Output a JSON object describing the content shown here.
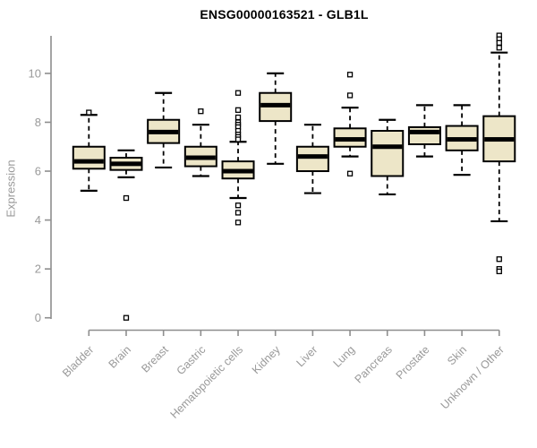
{
  "title": "ENSG00000163521 - GLB1L",
  "colors": {
    "background": "#ffffff",
    "box_fill": "#ede6c8",
    "box_border": "#000000",
    "median": "#000000",
    "whisker": "#000000",
    "outlier_stroke": "#000000",
    "outlier_fill": "#ffffff",
    "axis_line": "#8e8e8e",
    "tick_label": "#999999",
    "title_color": "#000000"
  },
  "chart_data": {
    "type": "boxplot",
    "title": "ENSG00000163521 - GLB1L",
    "ylabel": "Expression",
    "xlabel": "",
    "ylim": [
      0,
      11.6
    ],
    "yticks": [
      0,
      2,
      4,
      6,
      8,
      10
    ],
    "grid": false,
    "legend": "none",
    "categories": [
      "Bladder",
      "Brain",
      "Breast",
      "Gastric",
      "Hematopoietic cells",
      "Kidney",
      "Liver",
      "Lung",
      "Pancreas",
      "Prostate",
      "Skin",
      "Unknown / Other"
    ],
    "series": [
      {
        "label": "Bladder",
        "whisker_low": 5.2,
        "q1": 6.1,
        "median": 6.4,
        "q3": 7.0,
        "whisker_high": 8.3,
        "outliers": [
          8.4
        ]
      },
      {
        "label": "Brain",
        "whisker_low": 5.75,
        "q1": 6.05,
        "median": 6.3,
        "q3": 6.55,
        "whisker_high": 6.85,
        "outliers": [
          4.9,
          0.0
        ]
      },
      {
        "label": "Breast",
        "whisker_low": 6.15,
        "q1": 7.15,
        "median": 7.6,
        "q3": 8.1,
        "whisker_high": 9.2,
        "outliers": []
      },
      {
        "label": "Gastric",
        "whisker_low": 5.8,
        "q1": 6.2,
        "median": 6.55,
        "q3": 7.0,
        "whisker_high": 7.9,
        "outliers": [
          8.45
        ]
      },
      {
        "label": "Hematopoietic cells",
        "whisker_low": 4.9,
        "q1": 5.7,
        "median": 6.0,
        "q3": 6.4,
        "whisker_high": 7.2,
        "outliers": [
          9.2,
          8.5,
          8.2,
          8.0,
          7.9,
          7.8,
          7.65,
          7.5,
          7.4,
          7.3,
          4.6,
          4.3,
          3.9
        ]
      },
      {
        "label": "Kidney",
        "whisker_low": 6.3,
        "q1": 8.05,
        "median": 8.7,
        "q3": 9.2,
        "whisker_high": 10.0,
        "outliers": []
      },
      {
        "label": "Liver",
        "whisker_low": 5.1,
        "q1": 6.0,
        "median": 6.6,
        "q3": 7.0,
        "whisker_high": 7.9,
        "outliers": []
      },
      {
        "label": "Lung",
        "whisker_low": 6.6,
        "q1": 7.0,
        "median": 7.3,
        "q3": 7.75,
        "whisker_high": 8.6,
        "outliers": [
          9.95,
          9.1,
          5.9
        ]
      },
      {
        "label": "Pancreas",
        "whisker_low": 5.05,
        "q1": 5.8,
        "median": 7.0,
        "q3": 7.65,
        "whisker_high": 8.1,
        "outliers": []
      },
      {
        "label": "Prostate",
        "whisker_low": 6.6,
        "q1": 7.1,
        "median": 7.6,
        "q3": 7.8,
        "whisker_high": 8.7,
        "outliers": []
      },
      {
        "label": "Skin",
        "whisker_low": 5.85,
        "q1": 6.85,
        "median": 7.3,
        "q3": 7.85,
        "whisker_high": 8.7,
        "outliers": []
      },
      {
        "label": "Unknown / Other",
        "whisker_low": 3.95,
        "q1": 6.4,
        "median": 7.3,
        "q3": 8.25,
        "whisker_high": 10.85,
        "outliers": [
          11.55,
          11.4,
          11.25,
          11.05,
          2.4,
          2.0,
          1.9
        ]
      }
    ]
  }
}
